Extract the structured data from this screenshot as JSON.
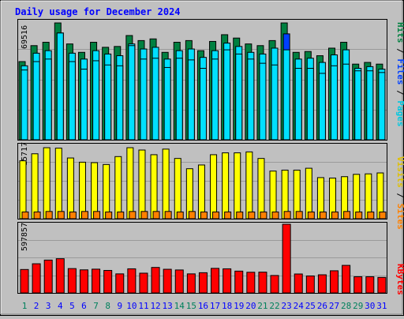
{
  "title": "Daily usage for December 2024",
  "colors": {
    "background": "#c0c0c0",
    "title": "#0000ff",
    "hits": "#008040",
    "files": "#0040ff",
    "pages": "#00e0ff",
    "visits": "#ffff00",
    "sites": "#ff8000",
    "kbytes": "#ff0000",
    "weekend_day": "#00805c",
    "weekday": "#0000ff"
  },
  "legend": {
    "pages": "Pages",
    "files": "Files",
    "hits": "Hits",
    "sites": "Sites",
    "visits": "Visits",
    "kbytes": "KBytes",
    "sep": " / "
  },
  "chart_data": [
    {
      "type": "bar",
      "name": "hits-files-pages",
      "y_label_max": "69516",
      "categories": [
        "1",
        "2",
        "3",
        "4",
        "5",
        "6",
        "7",
        "8",
        "9",
        "10",
        "11",
        "12",
        "13",
        "14",
        "15",
        "16",
        "17",
        "18",
        "19",
        "20",
        "21",
        "22",
        "23",
        "24",
        "25",
        "26",
        "27",
        "28",
        "29",
        "30",
        "31"
      ],
      "weekend_days": [
        1,
        7,
        8,
        14,
        15,
        21,
        22,
        28,
        29
      ],
      "highlight_day": 23,
      "series": [
        {
          "name": "Hits",
          "values": [
            46500,
            56000,
            58000,
            69500,
            57000,
            52000,
            58000,
            55000,
            55500,
            62000,
            59000,
            60000,
            52000,
            58000,
            59000,
            53000,
            58500,
            62500,
            60500,
            57000,
            56000,
            59000,
            69500,
            52000,
            52500,
            50000,
            54500,
            58000,
            45000,
            46000,
            45000
          ]
        },
        {
          "name": "Files",
          "values": [
            44000,
            51500,
            53000,
            63500,
            51500,
            48000,
            53000,
            51000,
            50000,
            57000,
            54000,
            55000,
            48000,
            53000,
            54000,
            49000,
            53000,
            57500,
            55500,
            52000,
            51000,
            54500,
            63000,
            48000,
            48500,
            46000,
            50500,
            53500,
            42500,
            43500,
            42000
          ]
        },
        {
          "name": "Pages",
          "values": [
            41500,
            46500,
            48000,
            63500,
            46500,
            42000,
            47000,
            44500,
            44000,
            56000,
            48000,
            48500,
            43000,
            48500,
            47500,
            42500,
            48000,
            53500,
            51000,
            48000,
            45500,
            44500,
            53500,
            42500,
            42500,
            39500,
            44000,
            45000,
            41000,
            41000,
            40000
          ]
        }
      ]
    },
    {
      "type": "bar",
      "name": "visits-sites",
      "y_label_max": "15717",
      "categories": [
        "1",
        "2",
        "3",
        "4",
        "5",
        "6",
        "7",
        "8",
        "9",
        "10",
        "11",
        "12",
        "13",
        "14",
        "15",
        "16",
        "17",
        "18",
        "19",
        "20",
        "21",
        "22",
        "23",
        "24",
        "25",
        "26",
        "27",
        "28",
        "29",
        "30",
        "31"
      ],
      "series": [
        {
          "name": "Visits",
          "values": [
            12400,
            13900,
            15200,
            15100,
            13000,
            12100,
            12000,
            11600,
            13300,
            15200,
            14700,
            13700,
            14900,
            12900,
            10700,
            11500,
            13700,
            14100,
            14100,
            14300,
            12900,
            10200,
            10400,
            10400,
            10800,
            8800,
            8700,
            9000,
            9500,
            9600,
            9800
          ]
        },
        {
          "name": "Sites",
          "values": [
            1450,
            1450,
            1550,
            1550,
            1450,
            1550,
            1550,
            1450,
            1450,
            1550,
            1550,
            1550,
            1550,
            1450,
            1550,
            1450,
            1450,
            1450,
            1450,
            1450,
            1450,
            1450,
            1550,
            1550,
            1450,
            1450,
            1450,
            1550,
            1450,
            1450,
            1450
          ]
        }
      ]
    },
    {
      "type": "bar",
      "name": "kbytes",
      "y_label_max": "597857",
      "categories": [
        "1",
        "2",
        "3",
        "4",
        "5",
        "6",
        "7",
        "8",
        "9",
        "10",
        "11",
        "12",
        "13",
        "14",
        "15",
        "16",
        "17",
        "18",
        "19",
        "20",
        "21",
        "22",
        "23",
        "24",
        "25",
        "26",
        "27",
        "28",
        "29",
        "30",
        "31"
      ],
      "series": [
        {
          "name": "KBytes",
          "values": [
            204000,
            254000,
            286000,
            298000,
            212000,
            201000,
            207000,
            196000,
            166000,
            210000,
            172000,
            222000,
            206000,
            200000,
            166000,
            176000,
            214000,
            210000,
            190000,
            180000,
            181000,
            152000,
            597857,
            165000,
            148000,
            158000,
            193000,
            240000,
            141000,
            141000,
            135000
          ]
        }
      ]
    }
  ]
}
